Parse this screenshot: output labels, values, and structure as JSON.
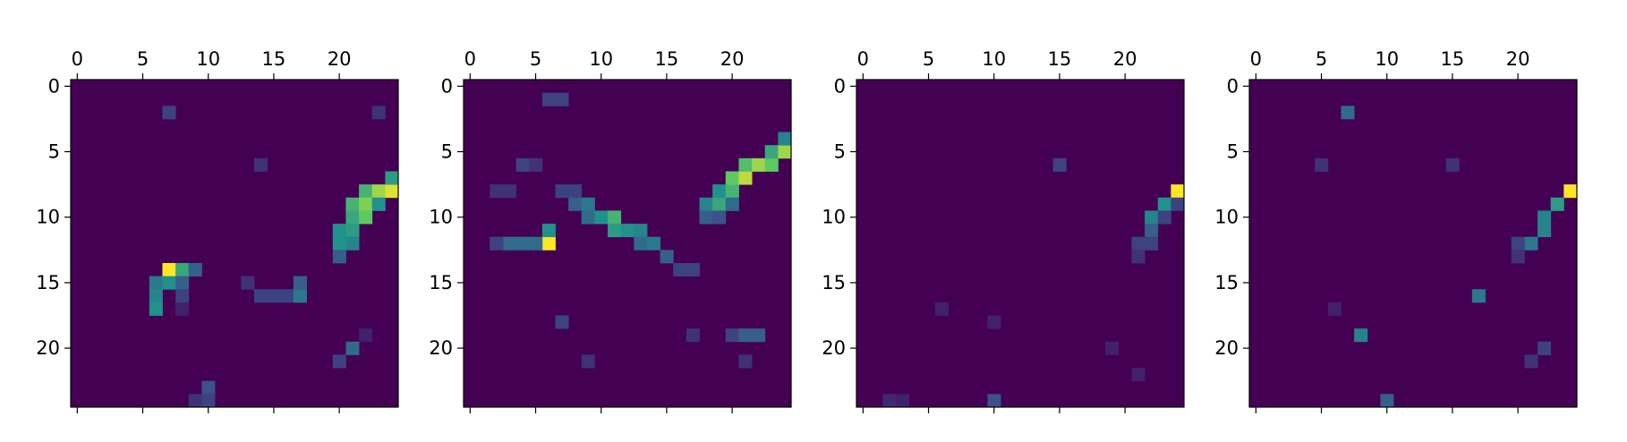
{
  "chart_data": [
    {
      "type": "heatmap",
      "title": "",
      "grid_size": [
        25,
        25
      ],
      "x_ticks": [
        "0",
        "5",
        "10",
        "15",
        "20"
      ],
      "y_ticks": [
        "0",
        "5",
        "10",
        "15",
        "20"
      ],
      "colormap": "viridis",
      "background_value": 0.0,
      "cells": [
        [
          14,
          7,
          1.0
        ],
        [
          14,
          8,
          0.6
        ],
        [
          14,
          9,
          0.3
        ],
        [
          15,
          6,
          0.4
        ],
        [
          15,
          7,
          0.5
        ],
        [
          15,
          8,
          0.3
        ],
        [
          16,
          6,
          0.45
        ],
        [
          16,
          8,
          0.2
        ],
        [
          17,
          6,
          0.5
        ],
        [
          17,
          8,
          0.1
        ],
        [
          15,
          13,
          0.15
        ],
        [
          16,
          14,
          0.2
        ],
        [
          16,
          15,
          0.2
        ],
        [
          16,
          16,
          0.2
        ],
        [
          16,
          17,
          0.4
        ],
        [
          15,
          17,
          0.3
        ],
        [
          8,
          22,
          0.65
        ],
        [
          8,
          23,
          0.85
        ],
        [
          8,
          24,
          0.95
        ],
        [
          7,
          24,
          0.55
        ],
        [
          9,
          21,
          0.65
        ],
        [
          9,
          22,
          0.8
        ],
        [
          9,
          23,
          0.5
        ],
        [
          10,
          21,
          0.6
        ],
        [
          10,
          22,
          0.75
        ],
        [
          11,
          20,
          0.5
        ],
        [
          11,
          21,
          0.55
        ],
        [
          12,
          20,
          0.5
        ],
        [
          12,
          21,
          0.45
        ],
        [
          13,
          20,
          0.3
        ],
        [
          2,
          7,
          0.2
        ],
        [
          2,
          23,
          0.15
        ],
        [
          6,
          14,
          0.15
        ],
        [
          19,
          22,
          0.1
        ],
        [
          20,
          21,
          0.35
        ],
        [
          21,
          20,
          0.2
        ],
        [
          23,
          10,
          0.25
        ],
        [
          24,
          10,
          0.2
        ],
        [
          24,
          9,
          0.15
        ]
      ]
    },
    {
      "type": "heatmap",
      "title": "",
      "grid_size": [
        25,
        25
      ],
      "x_ticks": [
        "0",
        "5",
        "10",
        "15",
        "20"
      ],
      "y_ticks": [
        "0",
        "5",
        "10",
        "15",
        "20"
      ],
      "colormap": "viridis",
      "background_value": 0.0,
      "cells": [
        [
          12,
          6,
          1.0
        ],
        [
          11,
          6,
          0.5
        ],
        [
          12,
          5,
          0.35
        ],
        [
          12,
          4,
          0.35
        ],
        [
          12,
          3,
          0.35
        ],
        [
          12,
          2,
          0.2
        ],
        [
          8,
          2,
          0.15
        ],
        [
          8,
          3,
          0.15
        ],
        [
          8,
          7,
          0.2
        ],
        [
          8,
          8,
          0.2
        ],
        [
          9,
          8,
          0.3
        ],
        [
          9,
          9,
          0.4
        ],
        [
          10,
          9,
          0.35
        ],
        [
          10,
          10,
          0.5
        ],
        [
          10,
          11,
          0.65
        ],
        [
          11,
          11,
          0.55
        ],
        [
          11,
          12,
          0.5
        ],
        [
          11,
          13,
          0.45
        ],
        [
          12,
          13,
          0.35
        ],
        [
          12,
          14,
          0.4
        ],
        [
          13,
          15,
          0.3
        ],
        [
          14,
          16,
          0.2
        ],
        [
          14,
          17,
          0.2
        ],
        [
          9,
          18,
          0.45
        ],
        [
          9,
          19,
          0.6
        ],
        [
          8,
          19,
          0.5
        ],
        [
          8,
          20,
          0.65
        ],
        [
          7,
          20,
          0.75
        ],
        [
          7,
          21,
          0.9
        ],
        [
          6,
          21,
          0.7
        ],
        [
          6,
          22,
          0.85
        ],
        [
          6,
          23,
          0.75
        ],
        [
          5,
          23,
          0.6
        ],
        [
          5,
          24,
          0.85
        ],
        [
          4,
          24,
          0.45
        ],
        [
          10,
          18,
          0.3
        ],
        [
          10,
          19,
          0.25
        ],
        [
          9,
          20,
          0.35
        ],
        [
          1,
          6,
          0.2
        ],
        [
          1,
          7,
          0.2
        ],
        [
          6,
          4,
          0.2
        ],
        [
          6,
          5,
          0.15
        ],
        [
          18,
          7,
          0.2
        ],
        [
          19,
          17,
          0.15
        ],
        [
          19,
          20,
          0.2
        ],
        [
          19,
          21,
          0.3
        ],
        [
          19,
          22,
          0.3
        ],
        [
          21,
          9,
          0.15
        ],
        [
          21,
          21,
          0.15
        ]
      ]
    },
    {
      "type": "heatmap",
      "title": "",
      "grid_size": [
        25,
        25
      ],
      "x_ticks": [
        "0",
        "5",
        "10",
        "15",
        "20"
      ],
      "y_ticks": [
        "0",
        "5",
        "10",
        "15",
        "20"
      ],
      "colormap": "viridis",
      "background_value": 0.0,
      "cells": [
        [
          8,
          24,
          1.0
        ],
        [
          9,
          23,
          0.5
        ],
        [
          9,
          24,
          0.2
        ],
        [
          10,
          22,
          0.45
        ],
        [
          10,
          23,
          0.2
        ],
        [
          11,
          22,
          0.3
        ],
        [
          12,
          21,
          0.2
        ],
        [
          12,
          22,
          0.2
        ],
        [
          13,
          21,
          0.15
        ],
        [
          6,
          15,
          0.2
        ],
        [
          24,
          10,
          0.25
        ],
        [
          17,
          6,
          0.1
        ],
        [
          18,
          10,
          0.1
        ],
        [
          20,
          19,
          0.1
        ],
        [
          22,
          21,
          0.1
        ],
        [
          24,
          2,
          0.12
        ],
        [
          24,
          3,
          0.1
        ]
      ]
    },
    {
      "type": "heatmap",
      "title": "",
      "grid_size": [
        25,
        25
      ],
      "x_ticks": [
        "0",
        "5",
        "10",
        "15",
        "20"
      ],
      "y_ticks": [
        "0",
        "5",
        "10",
        "15",
        "20"
      ],
      "colormap": "viridis",
      "background_value": 0.0,
      "cells": [
        [
          8,
          24,
          1.0
        ],
        [
          9,
          23,
          0.55
        ],
        [
          10,
          22,
          0.45
        ],
        [
          11,
          22,
          0.45
        ],
        [
          12,
          21,
          0.4
        ],
        [
          12,
          20,
          0.2
        ],
        [
          13,
          20,
          0.15
        ],
        [
          2,
          7,
          0.35
        ],
        [
          6,
          5,
          0.15
        ],
        [
          6,
          15,
          0.15
        ],
        [
          16,
          17,
          0.4
        ],
        [
          19,
          8,
          0.45
        ],
        [
          20,
          22,
          0.2
        ],
        [
          24,
          10,
          0.3
        ],
        [
          17,
          6,
          0.1
        ],
        [
          21,
          21,
          0.15
        ]
      ]
    }
  ]
}
